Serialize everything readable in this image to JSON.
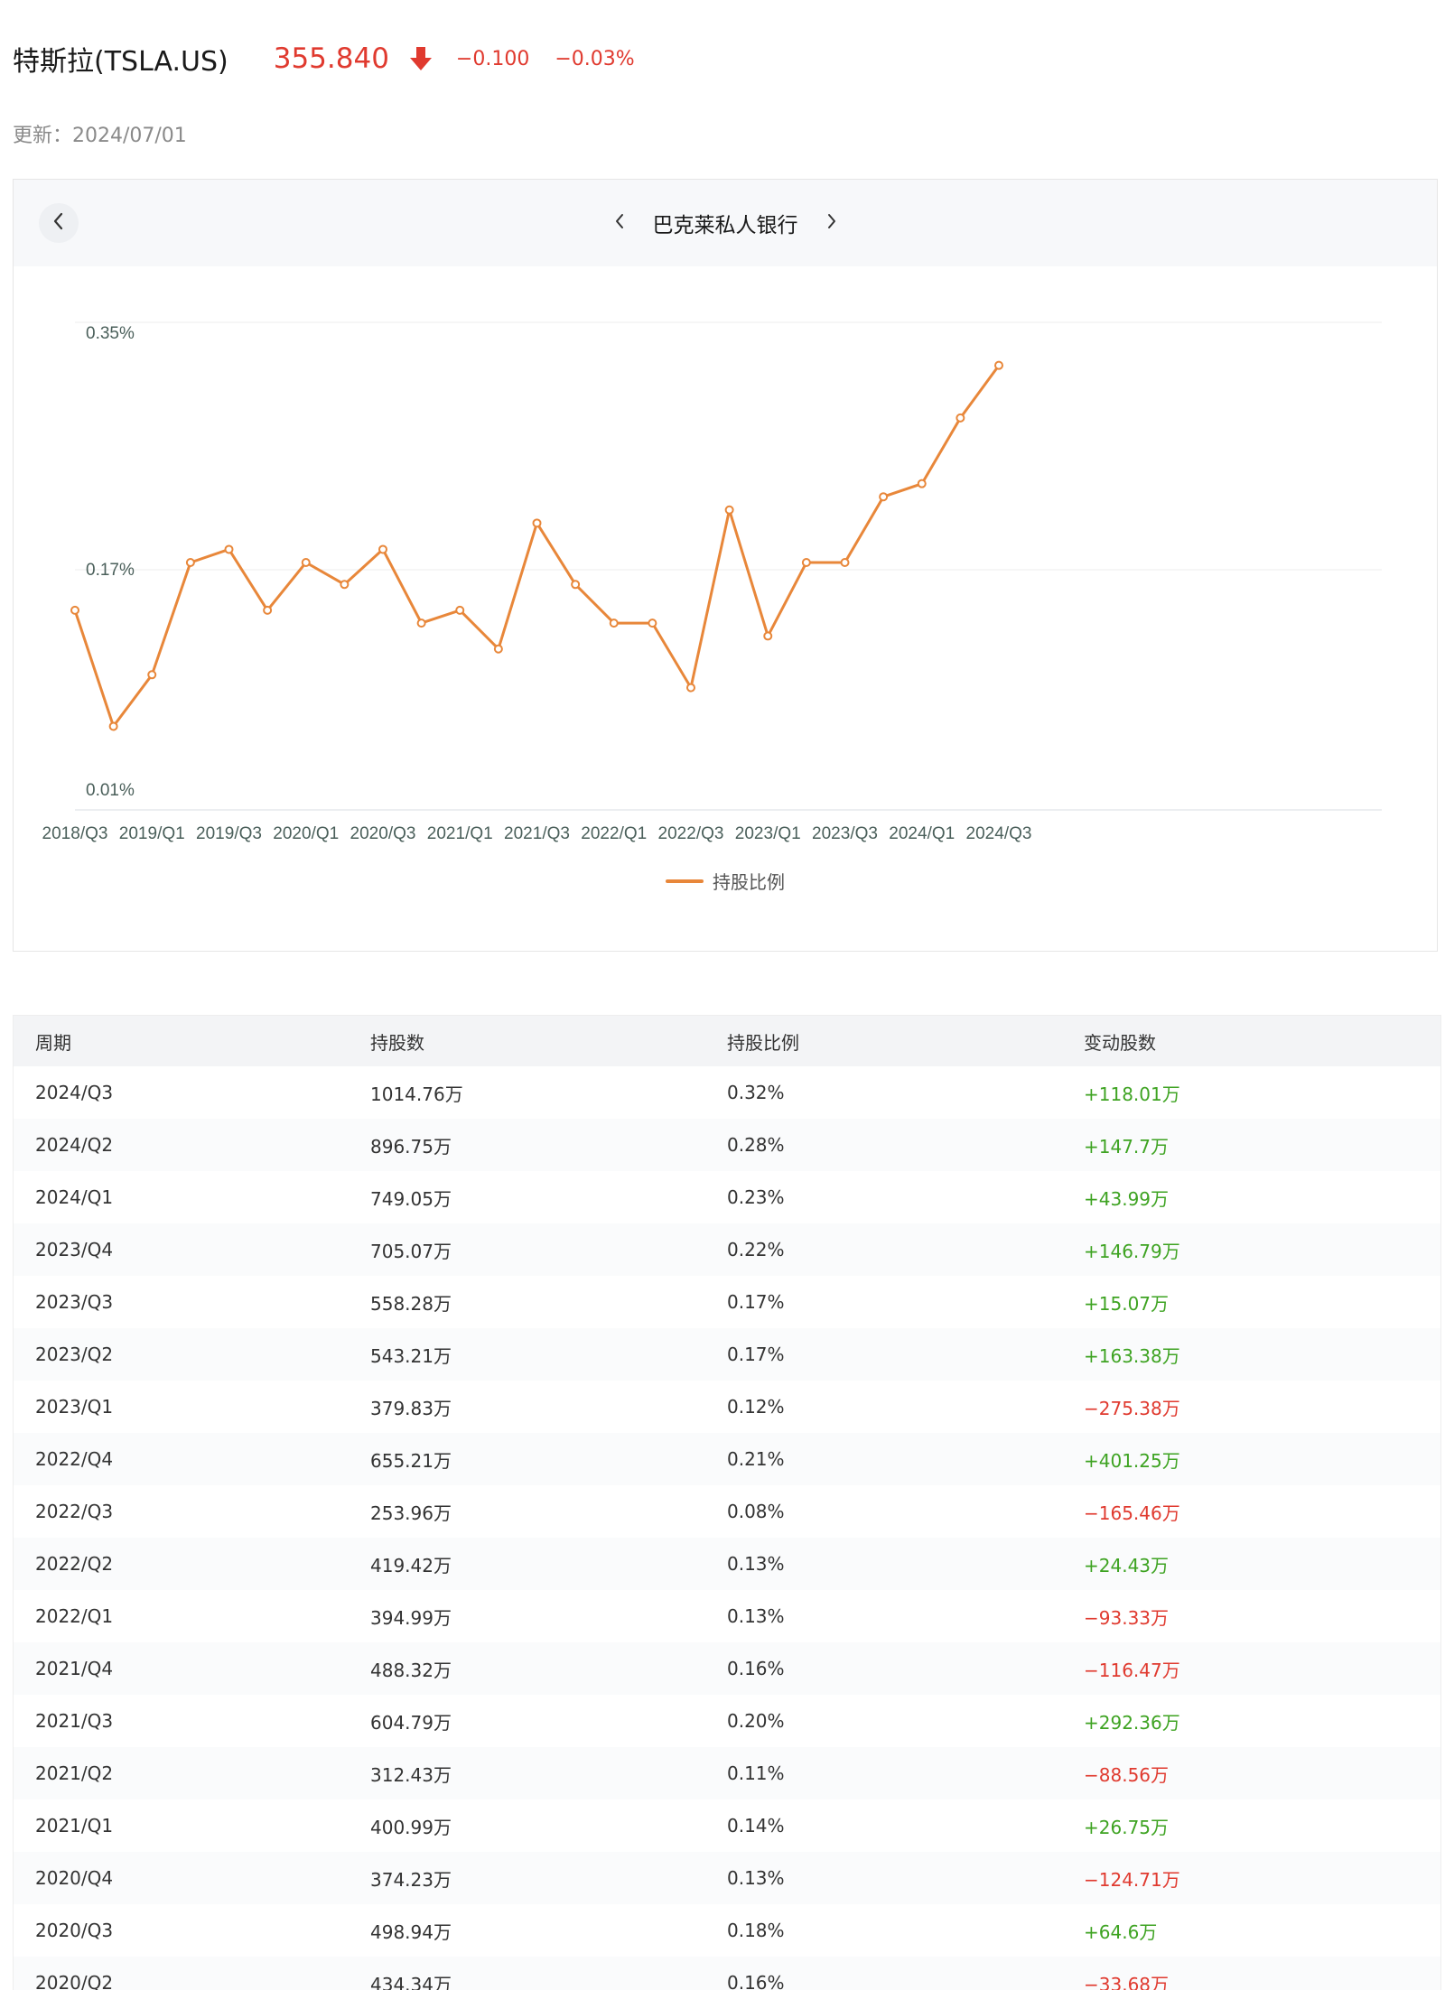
{
  "header": {
    "stock_name": "特斯拉(TSLA.US)",
    "price": "355.840",
    "change": "−0.100",
    "change_pct": "−0.03%",
    "updated": "更新：2024/07/01",
    "price_color": "#e03a2f",
    "arrow_icon": "arrow-down-icon"
  },
  "chart_card": {
    "institution": "巴克莱私人银行",
    "back_icon": "chevron-left-icon",
    "prev_icon": "chevron-left-icon",
    "next_icon": "chevron-right-icon"
  },
  "chart_data": {
    "type": "line",
    "x": [
      "2018/Q3",
      "2018/Q4",
      "2019/Q1",
      "2019/Q2",
      "2019/Q3",
      "2019/Q4",
      "2020/Q1",
      "2020/Q2",
      "2020/Q3",
      "2020/Q4",
      "2021/Q1",
      "2021/Q2",
      "2021/Q3",
      "2021/Q4",
      "2022/Q1",
      "2022/Q2",
      "2022/Q3",
      "2022/Q4",
      "2023/Q1",
      "2023/Q2",
      "2023/Q3",
      "2023/Q4",
      "2024/Q1",
      "2024/Q2",
      "2024/Q3"
    ],
    "x_tick_labels": [
      "2018/Q3",
      "2019/Q1",
      "2019/Q3",
      "2020/Q1",
      "2020/Q3",
      "2021/Q1",
      "2021/Q3",
      "2022/Q1",
      "2022/Q3",
      "2023/Q1",
      "2023/Q3",
      "2024/Q1",
      "2024/Q3"
    ],
    "series": [
      {
        "name": "持股比例",
        "color": "#e8873a",
        "values": [
          0.14,
          0.05,
          0.09,
          0.17,
          0.18,
          0.14,
          0.17,
          0.16,
          0.18,
          0.13,
          0.14,
          0.11,
          0.2,
          0.16,
          0.13,
          0.13,
          0.08,
          0.21,
          0.12,
          0.17,
          0.17,
          0.22,
          0.23,
          0.28,
          0.32
        ]
      }
    ],
    "y_ticks": [
      "0.35%",
      "0.17%",
      "0.01%"
    ],
    "ylim": [
      0.0,
      0.35
    ],
    "grid": true,
    "legend": "bottom-center"
  },
  "table": {
    "headers": [
      "周期",
      "持股数",
      "持股比例",
      "变动股数"
    ],
    "rows": [
      [
        "2024/Q3",
        "1014.76万",
        "0.32%",
        "+118.01万"
      ],
      [
        "2024/Q2",
        "896.75万",
        "0.28%",
        "+147.7万"
      ],
      [
        "2024/Q1",
        "749.05万",
        "0.23%",
        "+43.99万"
      ],
      [
        "2023/Q4",
        "705.07万",
        "0.22%",
        "+146.79万"
      ],
      [
        "2023/Q3",
        "558.28万",
        "0.17%",
        "+15.07万"
      ],
      [
        "2023/Q2",
        "543.21万",
        "0.17%",
        "+163.38万"
      ],
      [
        "2023/Q1",
        "379.83万",
        "0.12%",
        "−275.38万"
      ],
      [
        "2022/Q4",
        "655.21万",
        "0.21%",
        "+401.25万"
      ],
      [
        "2022/Q3",
        "253.96万",
        "0.08%",
        "−165.46万"
      ],
      [
        "2022/Q2",
        "419.42万",
        "0.13%",
        "+24.43万"
      ],
      [
        "2022/Q1",
        "394.99万",
        "0.13%",
        "−93.33万"
      ],
      [
        "2021/Q4",
        "488.32万",
        "0.16%",
        "−116.47万"
      ],
      [
        "2021/Q3",
        "604.79万",
        "0.20%",
        "+292.36万"
      ],
      [
        "2021/Q2",
        "312.43万",
        "0.11%",
        "−88.56万"
      ],
      [
        "2021/Q1",
        "400.99万",
        "0.14%",
        "+26.75万"
      ],
      [
        "2020/Q4",
        "374.23万",
        "0.13%",
        "−124.71万"
      ],
      [
        "2020/Q3",
        "498.94万",
        "0.18%",
        "+64.6万"
      ],
      [
        "2020/Q2",
        "434.34万",
        "0.16%",
        "−33.68万"
      ]
    ],
    "positive_color": "#3ea322",
    "negative_color": "#e03a2f"
  }
}
